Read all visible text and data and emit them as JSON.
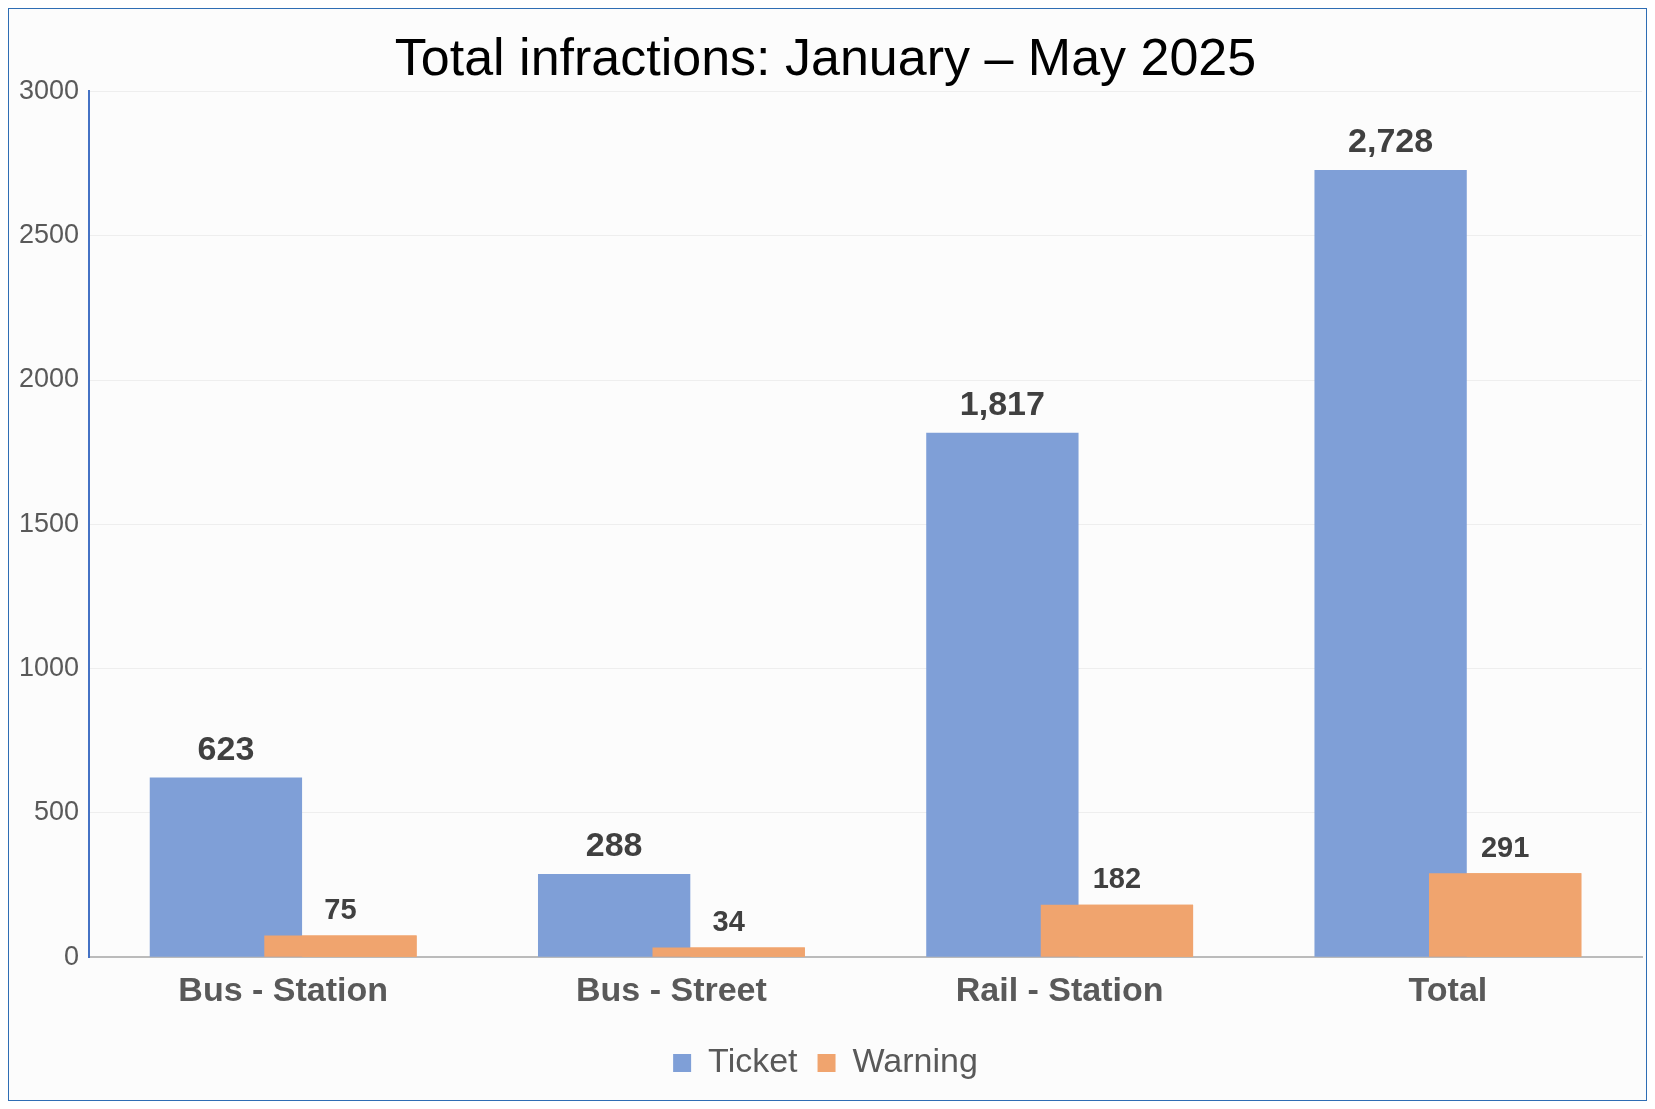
{
  "chart_data": {
    "type": "bar",
    "title": "Total infractions: January – May 2025",
    "categories": [
      "Bus - Station",
      "Bus - Street",
      "Rail - Station",
      "Total"
    ],
    "series": [
      {
        "name": "Ticket",
        "color": "#7f9fd7",
        "values": [
          623,
          288,
          1817,
          2728
        ],
        "value_labels": [
          "623",
          "288",
          "1,817",
          "2,728"
        ]
      },
      {
        "name": "Warning",
        "color": "#f0a46e",
        "values": [
          75,
          34,
          182,
          291
        ],
        "value_labels": [
          "75",
          "34",
          "182",
          "291"
        ]
      }
    ],
    "ylim": [
      0,
      3000
    ],
    "yticks": [
      0,
      500,
      1000,
      1500,
      2000,
      2500,
      3000
    ],
    "grid": "y",
    "legend": "bottom"
  }
}
